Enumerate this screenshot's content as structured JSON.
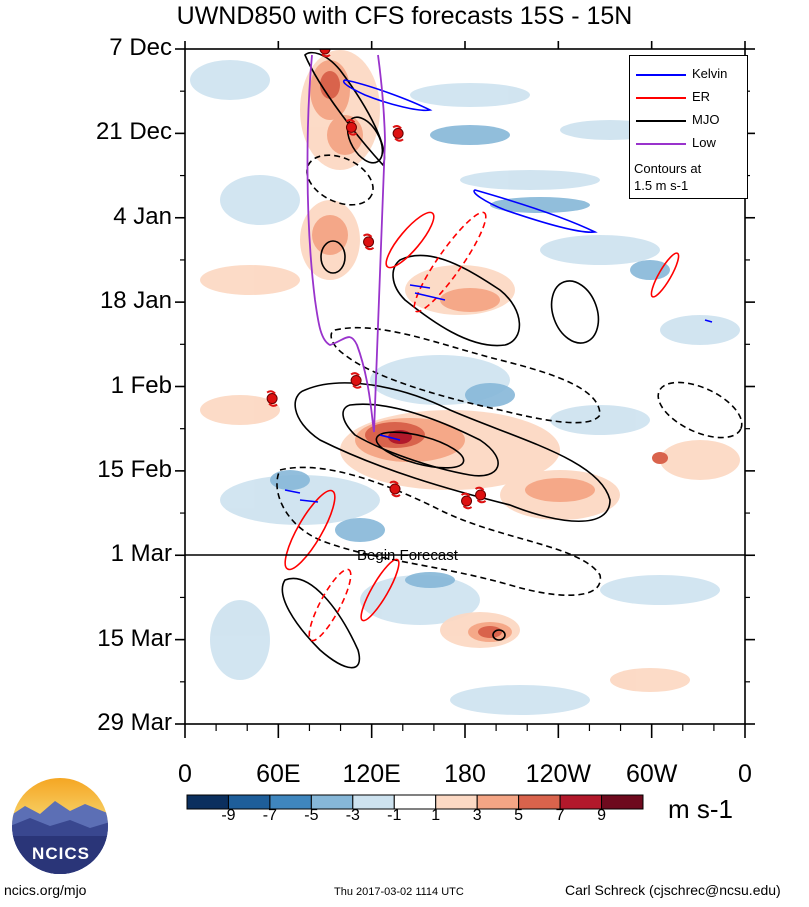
{
  "title": "UWND850 with CFS forecasts  15S - 15N",
  "chart_data": {
    "type": "heatmap",
    "title": "UWND850 with CFS forecasts  15S - 15N",
    "x_tick_labels": [
      "0",
      "60E",
      "120E",
      "180",
      "120W",
      "60W",
      "0"
    ],
    "x_range": [
      0,
      360
    ],
    "y_tick_labels": [
      "7 Dec",
      "21 Dec",
      "4 Jan",
      "18 Jan",
      "1 Feb",
      "15 Feb",
      "1 Mar",
      "15 Mar",
      "29 Mar"
    ],
    "colorbar": {
      "labels": [
        "-9",
        "-7",
        "-5",
        "-3",
        "-1",
        "1",
        "3",
        "5",
        "7",
        "9"
      ],
      "colors": [
        "#0b2f5e",
        "#1e5e9a",
        "#3f86be",
        "#86b7d8",
        "#cde2ef",
        "#ffffff",
        "#fcd9c4",
        "#f4a585",
        "#d9634c",
        "#b2182b",
        "#6e0a1e"
      ],
      "units": "m s-1"
    },
    "forecast_label": "Begin Forecast",
    "forecast_date": "1 Mar",
    "legend": {
      "entries": [
        {
          "name": "Kelvin",
          "color": "#0000ff"
        },
        {
          "name": "ER",
          "color": "#ff0000"
        },
        {
          "name": "MJO",
          "color": "#000000"
        },
        {
          "name": "Low",
          "color": "#9933cc"
        }
      ],
      "note_line1": "Contours at",
      "note_line2": "1.5 m s-1",
      "position": "top-right"
    },
    "storm_markers": [
      {
        "lon": 90,
        "day": 0
      },
      {
        "lon": 107,
        "day": 13
      },
      {
        "lon": 137,
        "day": 14
      },
      {
        "lon": 118,
        "day": 32
      },
      {
        "lon": 110,
        "day": 55
      },
      {
        "lon": 56,
        "day": 58
      },
      {
        "lon": 135,
        "day": 73
      },
      {
        "lon": 181,
        "day": 75
      },
      {
        "lon": 190,
        "day": 74
      }
    ]
  },
  "footer": {
    "left": "ncics.org/mjo",
    "center": "Thu 2017-03-02 1114 UTC",
    "right": "Carl Schreck (cjschrec@ncsu.edu)"
  },
  "logo": {
    "text": "NCICS"
  }
}
